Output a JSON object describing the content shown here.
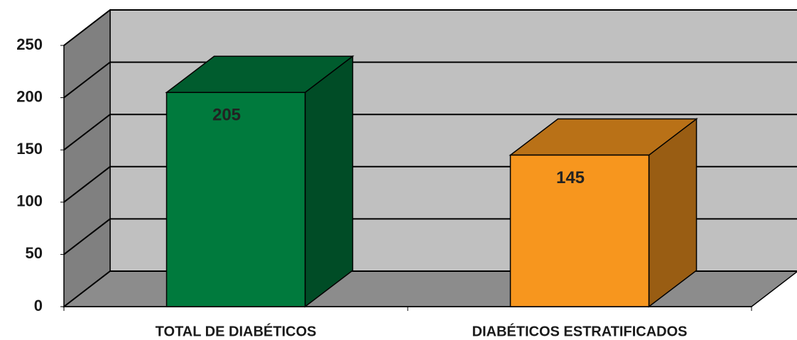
{
  "chart_data": {
    "type": "bar3d",
    "categories": [
      "TOTAL DE DIABÉTICOS",
      "DIABÉTICOS ESTRATIFICADOS"
    ],
    "values": [
      205,
      145
    ],
    "colors": [
      "#007a3d",
      "#f7961e"
    ],
    "ylim": [
      0,
      250
    ],
    "yticks": [
      0,
      50,
      100,
      150,
      200,
      250
    ],
    "grid": true
  }
}
